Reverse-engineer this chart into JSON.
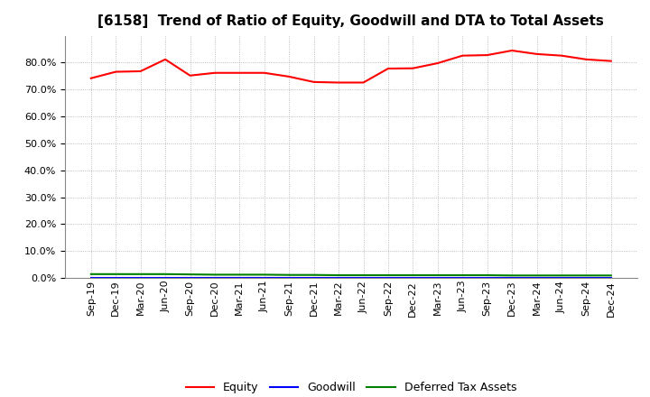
{
  "title": "[6158]  Trend of Ratio of Equity, Goodwill and DTA to Total Assets",
  "x_labels": [
    "Sep-19",
    "Dec-19",
    "Mar-20",
    "Jun-20",
    "Sep-20",
    "Dec-20",
    "Mar-21",
    "Jun-21",
    "Sep-21",
    "Dec-21",
    "Mar-22",
    "Jun-22",
    "Sep-22",
    "Dec-22",
    "Mar-23",
    "Jun-23",
    "Sep-23",
    "Dec-23",
    "Mar-24",
    "Jun-24",
    "Sep-24",
    "Dec-24"
  ],
  "equity": [
    0.742,
    0.766,
    0.768,
    0.812,
    0.752,
    0.762,
    0.762,
    0.762,
    0.748,
    0.728,
    0.726,
    0.726,
    0.778,
    0.779,
    0.798,
    0.826,
    0.828,
    0.845,
    0.832,
    0.826,
    0.812,
    0.806
  ],
  "goodwill": [
    0.0,
    0.0,
    0.0,
    0.0,
    0.0,
    0.0,
    0.0,
    0.0,
    0.0,
    0.0,
    0.0,
    0.0,
    0.0,
    0.0,
    0.0,
    0.0,
    0.0,
    0.0,
    0.0,
    0.0,
    0.0,
    0.0
  ],
  "dta": [
    0.014,
    0.014,
    0.014,
    0.014,
    0.013,
    0.012,
    0.012,
    0.012,
    0.011,
    0.011,
    0.01,
    0.01,
    0.01,
    0.01,
    0.01,
    0.01,
    0.01,
    0.009,
    0.009,
    0.009,
    0.009,
    0.009
  ],
  "equity_color": "#ff0000",
  "goodwill_color": "#0000ff",
  "dta_color": "#008000",
  "ylim": [
    0.0,
    0.9
  ],
  "yticks": [
    0.0,
    0.1,
    0.2,
    0.3,
    0.4,
    0.5,
    0.6,
    0.7,
    0.8
  ],
  "bg_color": "#ffffff",
  "plot_bg_color": "#ffffff",
  "grid_color": "#aaaaaa",
  "title_fontsize": 11,
  "tick_fontsize": 8,
  "legend_labels": [
    "Equity",
    "Goodwill",
    "Deferred Tax Assets"
  ]
}
